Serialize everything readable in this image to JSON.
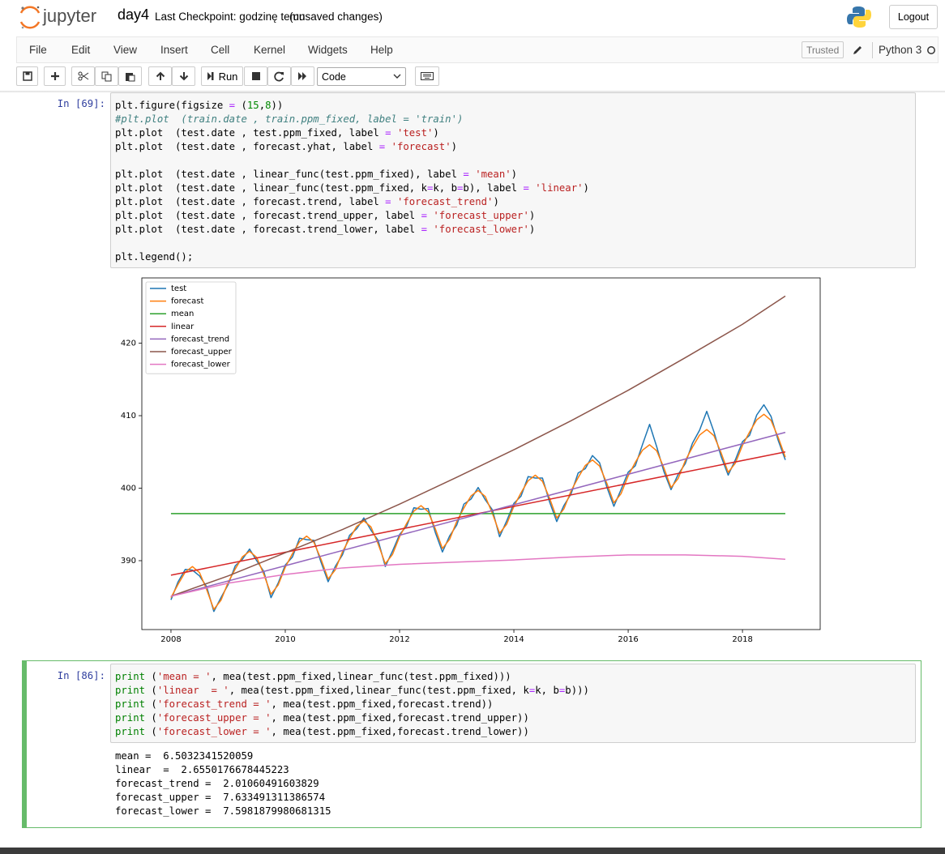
{
  "header": {
    "logo": "jupyter",
    "notebook_name": "day4",
    "checkpoint": "Last Checkpoint: godzinę temu",
    "autosave": "(unsaved changes)",
    "logout": "Logout"
  },
  "menu": {
    "items": [
      "File",
      "Edit",
      "View",
      "Insert",
      "Cell",
      "Kernel",
      "Widgets",
      "Help"
    ],
    "trusted": "Trusted",
    "kernel": "Python 3"
  },
  "toolbar": {
    "run": "Run",
    "cell_type": "Code"
  },
  "cells": [
    {
      "prompt": "In [69]:",
      "code": [
        [
          "plt.figure(figsize = (15,8))",
          "#plt.plot  (train.date , train.ppm_fixed, label = 'train')",
          "plt.plot  (test.date , test.ppm_fixed, label = 'test')",
          "plt.plot  (test.date , forecast.yhat, label = 'forecast')"
        ],
        [
          "plt.plot  (test.date , linear_func(test.ppm_fixed), label = 'mean')",
          "plt.plot  (test.date , linear_func(test.ppm_fixed, k=k, b=b), label = 'linear')",
          "plt.plot  (test.date , forecast.trend, label = 'forecast_trend')",
          "plt.plot  (test.date , forecast.trend_upper, label = 'forecast_upper')",
          "plt.plot  (test.date , forecast.trend_lower, label = 'forecast_lower')"
        ],
        [
          "plt.legend();"
        ]
      ]
    },
    {
      "prompt": "In [86]:",
      "code": [
        [
          "print ('mean = ', mea(test.ppm_fixed,linear_func(test.ppm_fixed)))",
          "print ('linear  = ', mea(test.ppm_fixed,linear_func(test.ppm_fixed, k=k, b=b)))",
          "print ('forecast_trend = ', mea(test.ppm_fixed,forecast.trend))",
          "print ('forecast_upper = ', mea(test.ppm_fixed,forecast.trend_upper))",
          "print ('forecast_lower = ', mea(test.ppm_fixed,forecast.trend_lower))"
        ]
      ],
      "output": [
        "mean =  6.5032341520059",
        "linear  =  2.6550176678445223",
        "forecast_trend =  2.01060491603829",
        "forecast_upper =  7.633491311386574",
        "forecast_lower =  7.5981879980681315"
      ]
    }
  ],
  "chart_data": {
    "type": "line",
    "legend": "upper left",
    "xlim": [
      2007.49,
      2019.36
    ],
    "xticks": [
      2008,
      2010,
      2012,
      2014,
      2016,
      2018
    ],
    "ylim": [
      380.5,
      429.0
    ],
    "yticks": [
      390,
      400,
      410,
      420
    ],
    "x": [
      2008,
      2008.125,
      2008.25,
      2008.375,
      2008.5,
      2008.625,
      2008.75,
      2008.875,
      2009,
      2009.125,
      2009.25,
      2009.375,
      2009.5,
      2009.625,
      2009.75,
      2009.875,
      2010,
      2010.125,
      2010.25,
      2010.375,
      2010.5,
      2010.625,
      2010.75,
      2010.875,
      2011,
      2011.125,
      2011.25,
      2011.375,
      2011.5,
      2011.625,
      2011.75,
      2011.875,
      2012,
      2012.125,
      2012.25,
      2012.375,
      2012.5,
      2012.625,
      2012.75,
      2012.875,
      2013,
      2013.125,
      2013.25,
      2013.375,
      2013.5,
      2013.625,
      2013.75,
      2013.875,
      2014,
      2014.125,
      2014.25,
      2014.375,
      2014.5,
      2014.625,
      2014.75,
      2014.875,
      2015,
      2015.125,
      2015.25,
      2015.375,
      2015.5,
      2015.625,
      2015.75,
      2015.875,
      2016,
      2016.125,
      2016.25,
      2016.375,
      2016.5,
      2016.625,
      2016.75,
      2016.875,
      2017,
      2017.125,
      2017.25,
      2017.375,
      2017.5,
      2017.625,
      2017.75,
      2017.875,
      2018,
      2018.125,
      2018.25,
      2018.375,
      2018.5,
      2018.625,
      2018.75
    ],
    "series": [
      {
        "name": "test",
        "color": "#1f77b4",
        "values": [
          384.6,
          387.1,
          388.8,
          388.7,
          387.9,
          386.4,
          383.0,
          384.9,
          386.7,
          389.3,
          390.2,
          391.6,
          390.0,
          388.5,
          384.9,
          386.9,
          389.4,
          390.5,
          393.1,
          392.9,
          392.8,
          389.8,
          387.1,
          389.2,
          390.8,
          393.5,
          394.4,
          395.9,
          394.2,
          392.8,
          389.2,
          391.3,
          393.6,
          394.8,
          397.3,
          397.1,
          397.2,
          393.9,
          391.2,
          393.4,
          394.9,
          397.8,
          398.5,
          400.1,
          398.4,
          397.0,
          393.3,
          395.5,
          397.9,
          398.9,
          401.6,
          401.4,
          401.4,
          398.1,
          395.4,
          397.6,
          399.2,
          402.1,
          402.7,
          404.5,
          403.5,
          400.2,
          397.5,
          399.8,
          402.2,
          403.1,
          406.0,
          408.8,
          405.7,
          402.3,
          399.8,
          401.9,
          403.4,
          406.2,
          408.0,
          410.6,
          407.8,
          404.4,
          401.8,
          403.9,
          406.4,
          407.3,
          410.1,
          411.5,
          409.9,
          406.6,
          403.9
        ]
      },
      {
        "name": "forecast",
        "color": "#ff7f0e",
        "values": [
          384.9,
          386.76,
          388.43,
          389.19,
          388.35,
          386.01,
          383.28,
          384.54,
          387.0,
          388.86,
          390.53,
          391.29,
          390.45,
          388.11,
          385.38,
          386.64,
          389.1,
          390.96,
          392.63,
          393.39,
          392.55,
          390.21,
          387.48,
          388.74,
          391.2,
          393.06,
          394.73,
          395.49,
          394.65,
          392.31,
          389.58,
          390.84,
          393.3,
          395.16,
          396.83,
          397.59,
          396.75,
          394.41,
          391.68,
          392.94,
          395.4,
          397.26,
          398.93,
          399.69,
          398.85,
          396.51,
          393.78,
          395.04,
          397.5,
          399.36,
          401.03,
          401.79,
          400.95,
          398.61,
          395.88,
          397.14,
          399.6,
          401.46,
          403.13,
          403.89,
          403.05,
          400.71,
          397.98,
          399.24,
          401.7,
          403.56,
          405.23,
          405.99,
          405.15,
          402.81,
          400.08,
          401.34,
          403.8,
          405.66,
          407.33,
          408.09,
          407.25,
          404.91,
          402.18,
          403.44,
          405.9,
          407.76,
          409.43,
          410.19,
          409.35,
          407.01,
          404.28
        ]
      },
      {
        "name": "mean",
        "color": "#2ca02c",
        "x": [
          2008,
          2018.75
        ],
        "values": [
          396.5,
          396.5
        ]
      },
      {
        "name": "linear",
        "color": "#d62728",
        "x": [
          2008,
          2018.75
        ],
        "values": [
          388.0,
          405.0
        ]
      },
      {
        "name": "forecast_trend",
        "color": "#9467bd",
        "x": [
          2008,
          2018.75
        ],
        "values": [
          385.1,
          407.7
        ]
      },
      {
        "name": "forecast_upper",
        "color": "#8c564b",
        "x": [
          2008,
          2009,
          2010,
          2011,
          2012,
          2013,
          2014,
          2015,
          2016,
          2017,
          2018,
          2018.75
        ],
        "values": [
          385.1,
          387.9,
          391.1,
          394.3,
          397.8,
          401.5,
          405.3,
          409.3,
          413.5,
          418.0,
          422.6,
          426.5
        ]
      },
      {
        "name": "forecast_lower",
        "color": "#e377c2",
        "x": [
          2008,
          2009,
          2010,
          2011,
          2012,
          2013,
          2014,
          2015,
          2016,
          2017,
          2018,
          2018.75
        ],
        "values": [
          385.1,
          386.9,
          388.1,
          389.0,
          389.5,
          389.8,
          390.1,
          390.5,
          390.8,
          390.8,
          390.6,
          390.2
        ]
      }
    ]
  }
}
